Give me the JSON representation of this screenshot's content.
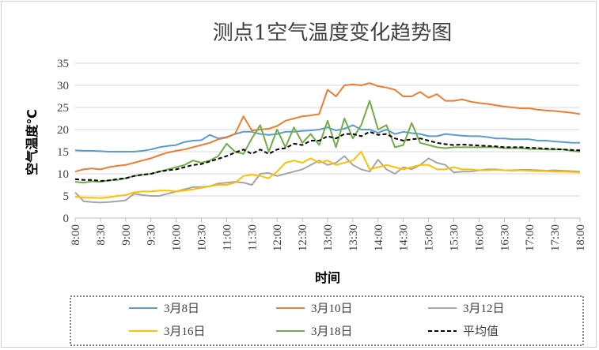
{
  "chart_data": {
    "type": "line",
    "title": "测点1空气温度变化趋势图",
    "xlabel": "时间",
    "ylabel": "空气温度℃",
    "ylim": [
      0,
      35
    ],
    "yticks": [
      0,
      5,
      10,
      15,
      20,
      25,
      30,
      35
    ],
    "x_range": [
      "8:00",
      "18:00"
    ],
    "x_step_minutes": 10,
    "xtick_labels": [
      "8:00",
      "8:30",
      "9:00",
      "9:30",
      "10:00",
      "10:30",
      "11:00",
      "11:30",
      "12:00",
      "12:30",
      "13:00",
      "13:30",
      "14:00",
      "14:30",
      "15:00",
      "15:30",
      "16:00",
      "16:30",
      "17:00",
      "17:30",
      "18:00"
    ],
    "grid": "horizontal",
    "legend_position": "bottom",
    "series": [
      {
        "name": "3月8日",
        "color": "#5b9bd5",
        "dashed": false,
        "values": [
          15.3,
          15.2,
          15.2,
          15.1,
          15.0,
          15.0,
          15.0,
          15.0,
          15.2,
          15.5,
          16.0,
          16.3,
          16.5,
          17.2,
          17.5,
          17.6,
          18.8,
          18.0,
          18.3,
          19.0,
          19.5,
          19.5,
          19.0,
          18.8,
          19.0,
          19.5,
          19.5,
          19.7,
          19.8,
          20.0,
          20.5,
          19.8,
          20.2,
          21.0,
          20.0,
          20.0,
          19.3,
          20.0,
          19.0,
          19.5,
          19.2,
          19.0,
          18.5,
          18.5,
          19.0,
          18.8,
          18.6,
          18.5,
          18.5,
          18.3,
          18.0,
          18.0,
          17.8,
          17.8,
          17.8,
          17.5,
          17.5,
          17.3,
          17.2,
          17.0,
          17.0
        ]
      },
      {
        "name": "3月10日",
        "color": "#ed7d31",
        "dashed": false,
        "values": [
          10.5,
          11.0,
          11.2,
          11.0,
          11.5,
          11.8,
          12.0,
          12.5,
          13.0,
          13.5,
          14.2,
          14.8,
          15.2,
          15.5,
          16.0,
          16.5,
          17.0,
          17.8,
          18.2,
          19.0,
          23.0,
          19.8,
          20.0,
          20.2,
          20.8,
          22.0,
          22.5,
          23.0,
          23.2,
          23.5,
          29.0,
          27.5,
          30.0,
          30.2,
          30.0,
          30.5,
          29.8,
          29.5,
          29.0,
          27.5,
          27.5,
          28.5,
          27.2,
          28.0,
          26.5,
          26.5,
          26.8,
          26.3,
          26.0,
          25.8,
          25.5,
          25.2,
          25.0,
          24.8,
          24.8,
          24.5,
          24.3,
          24.2,
          24.0,
          23.8,
          23.5
        ]
      },
      {
        "name": "3月12日",
        "color": "#a5a5a5",
        "dashed": false,
        "values": [
          5.8,
          3.8,
          3.6,
          3.5,
          3.6,
          3.8,
          4.0,
          5.5,
          5.2,
          5.0,
          5.0,
          5.5,
          6.0,
          6.5,
          7.0,
          7.0,
          7.2,
          7.8,
          8.0,
          8.2,
          8.0,
          7.5,
          10.0,
          10.2,
          9.5,
          10.0,
          10.5,
          11.0,
          12.0,
          13.0,
          12.0,
          12.5,
          14.0,
          12.0,
          11.0,
          10.5,
          13.2,
          11.0,
          10.0,
          11.5,
          11.0,
          12.0,
          13.5,
          12.5,
          12.0,
          10.3,
          10.5,
          10.5,
          10.8,
          11.0,
          11.0,
          10.8,
          10.8,
          10.9,
          10.9,
          10.8,
          10.7,
          10.8,
          10.7,
          10.6,
          10.5
        ]
      },
      {
        "name": "3月16日",
        "color": "#ffc000",
        "dashed": false,
        "values": [
          4.8,
          4.6,
          4.6,
          4.5,
          4.7,
          5.0,
          5.2,
          5.8,
          6.0,
          6.0,
          6.2,
          6.2,
          6.0,
          6.2,
          6.5,
          6.8,
          7.2,
          7.5,
          7.5,
          8.0,
          9.5,
          9.8,
          9.5,
          9.0,
          10.5,
          12.5,
          13.0,
          12.5,
          13.5,
          12.5,
          13.0,
          12.0,
          12.5,
          13.0,
          15.0,
          11.0,
          11.5,
          12.0,
          11.5,
          11.0,
          11.5,
          12.0,
          12.0,
          11.0,
          11.0,
          11.5,
          11.0,
          11.0,
          10.8,
          10.8,
          10.9,
          10.8,
          10.7,
          10.8,
          10.7,
          10.6,
          10.6,
          10.5,
          10.5,
          10.4,
          10.3
        ]
      },
      {
        "name": "3月18日",
        "color": "#70ad47",
        "dashed": false,
        "values": [
          8.2,
          8.0,
          8.3,
          8.2,
          8.5,
          8.6,
          9.0,
          9.5,
          9.8,
          10.0,
          10.5,
          11.0,
          11.5,
          12.0,
          13.0,
          12.5,
          13.0,
          14.0,
          16.8,
          15.0,
          14.5,
          18.0,
          21.0,
          15.0,
          20.0,
          16.0,
          20.5,
          17.0,
          19.0,
          16.5,
          22.0,
          16.0,
          22.5,
          18.0,
          21.0,
          26.5,
          20.0,
          21.0,
          16.0,
          16.5,
          21.5,
          17.0,
          16.5,
          16.0,
          15.8,
          16.0,
          16.0,
          16.0,
          16.0,
          16.0,
          16.0,
          15.8,
          15.8,
          15.8,
          15.6,
          15.6,
          15.5,
          15.5,
          15.5,
          15.2,
          15.0
        ]
      },
      {
        "name": "平均值",
        "color": "#000000",
        "dashed": true,
        "values": [
          8.8,
          8.6,
          8.6,
          8.4,
          8.5,
          8.8,
          9.0,
          9.5,
          9.8,
          10.0,
          10.5,
          10.8,
          11.0,
          11.5,
          12.0,
          12.2,
          12.8,
          13.4,
          14.0,
          14.8,
          15.5,
          14.5,
          15.5,
          14.5,
          15.5,
          15.8,
          16.8,
          16.5,
          17.5,
          17.5,
          18.5,
          18.0,
          19.0,
          19.0,
          18.5,
          19.5,
          18.8,
          19.0,
          18.0,
          17.5,
          17.8,
          18.0,
          17.5,
          17.0,
          16.7,
          16.5,
          16.6,
          16.5,
          16.4,
          16.3,
          16.2,
          16.0,
          16.0,
          16.0,
          15.9,
          15.8,
          15.7,
          15.6,
          15.5,
          15.4,
          15.3
        ]
      }
    ]
  }
}
